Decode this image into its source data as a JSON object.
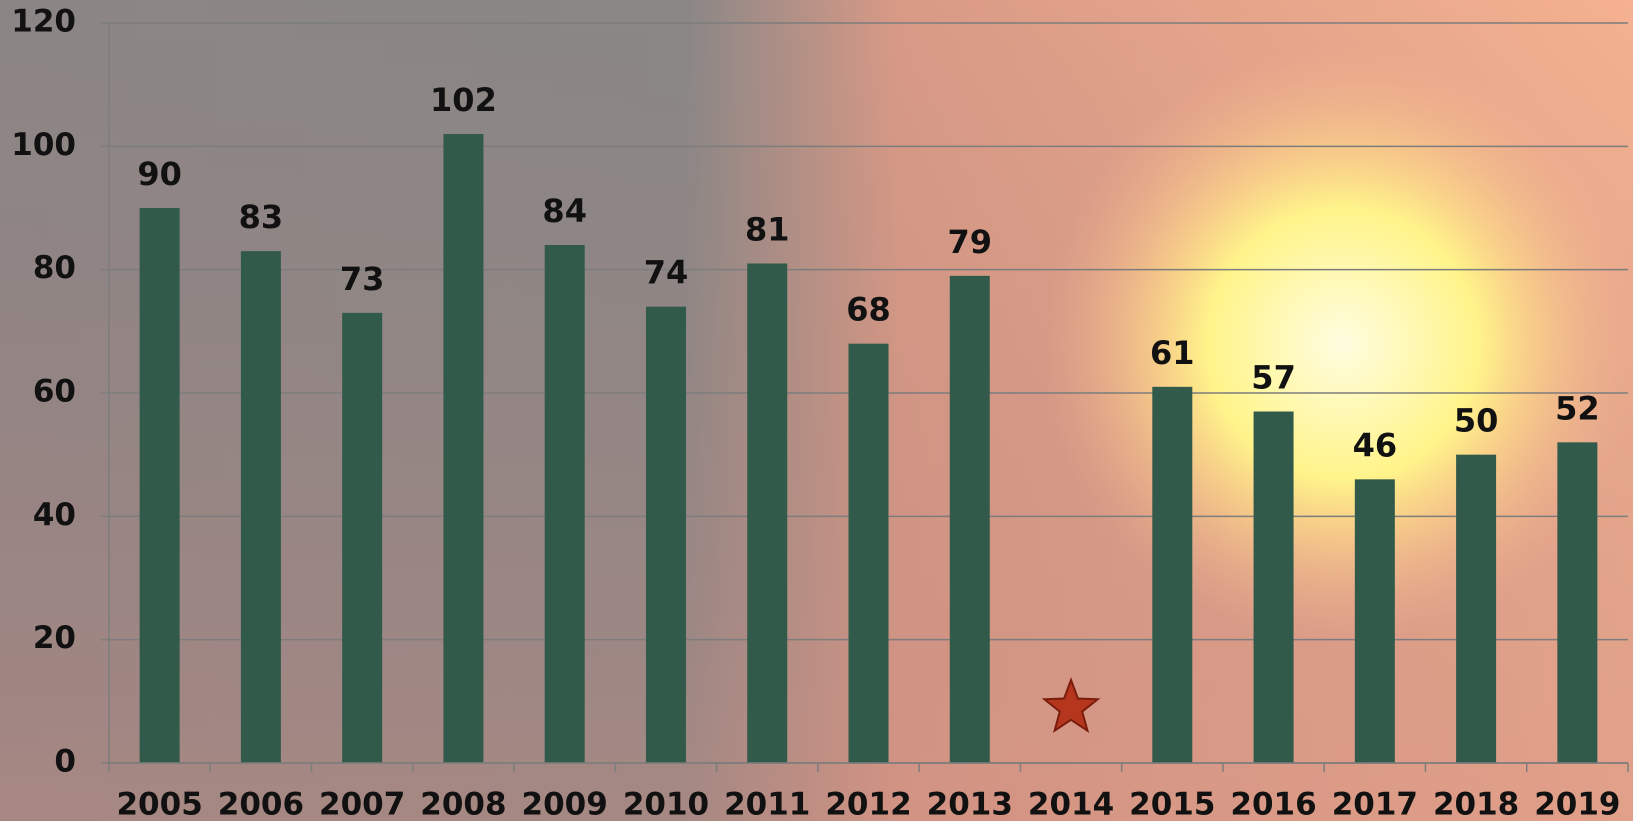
{
  "chart_data": {
    "type": "bar",
    "categories": [
      "2005",
      "2006",
      "2007",
      "2008",
      "2009",
      "2010",
      "2011",
      "2012",
      "2013",
      "2014",
      "2015",
      "2016",
      "2017",
      "2018",
      "2019"
    ],
    "values": [
      90,
      83,
      73,
      102,
      84,
      74,
      81,
      68,
      79,
      null,
      61,
      57,
      46,
      50,
      52
    ],
    "color": "#325a4a",
    "ylim": [
      0,
      120
    ],
    "yticks": [
      0,
      20,
      40,
      60,
      80,
      100,
      120
    ],
    "grid": true
  }
}
